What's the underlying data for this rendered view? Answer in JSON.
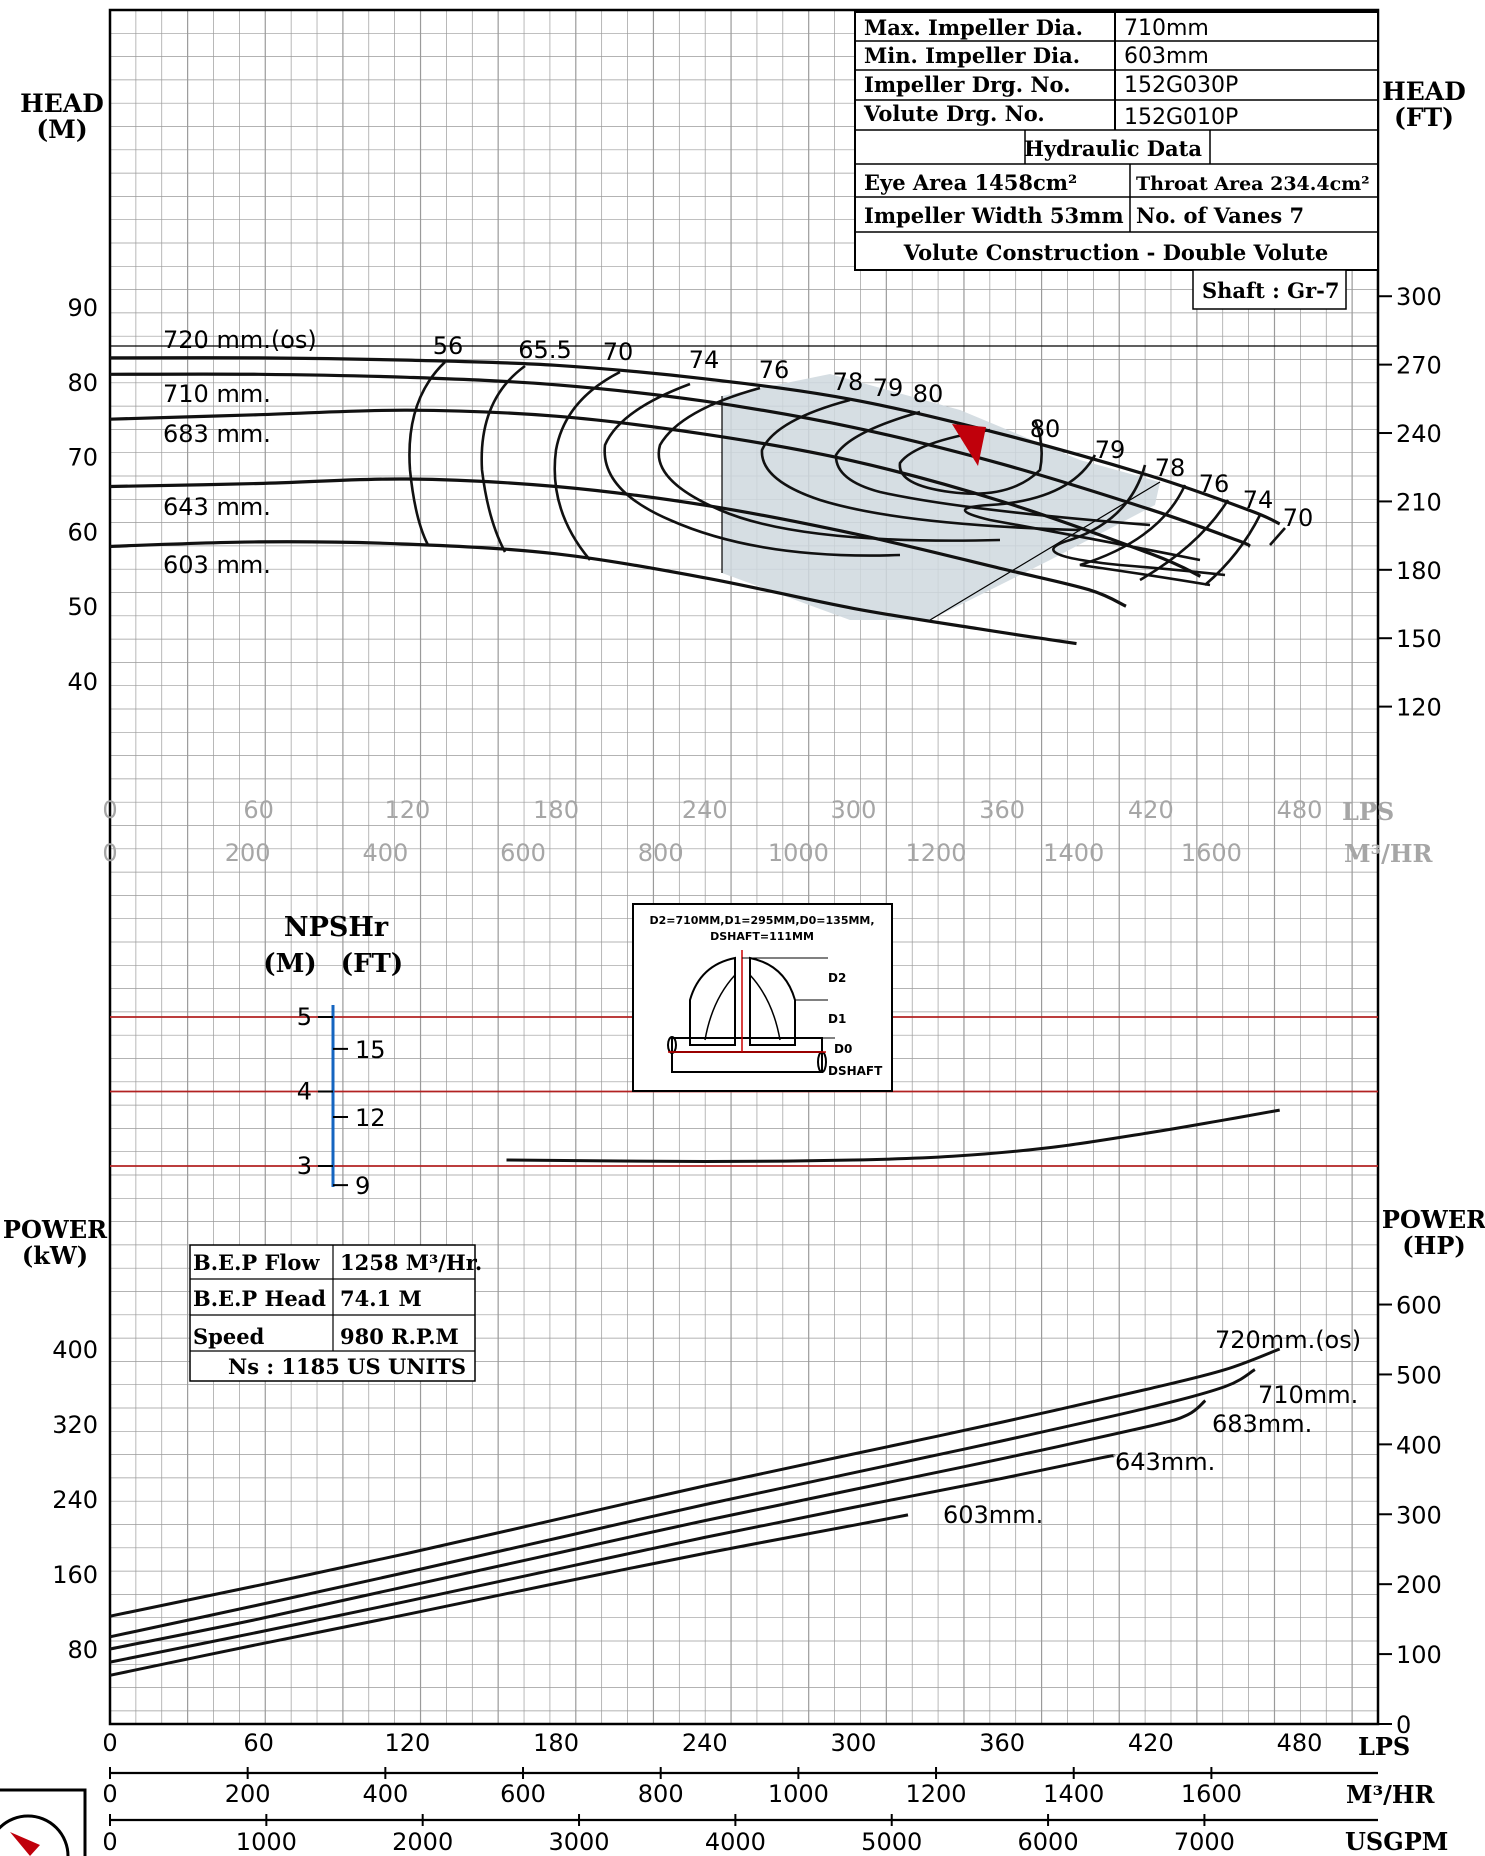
{
  "colors": {
    "grid": "#9a9a9a",
    "curve": "#111111",
    "red_line": "#b22222",
    "shade": "#cfd8de",
    "npsh_axis": "#1565c0",
    "marker": "#c0000b"
  },
  "labels": {
    "head_left": [
      "HEAD",
      "(M)"
    ],
    "head_right": [
      "HEAD",
      "(FT)"
    ],
    "power_left": [
      "POWER",
      "(kW)"
    ],
    "power_right": [
      "POWER",
      "(HP)"
    ],
    "npsh_title": "NPSHr",
    "npsh_m": "(M)",
    "npsh_ft": "(FT)"
  },
  "info_table": [
    [
      "Max. Impeller Dia.",
      "710mm"
    ],
    [
      "Min. Impeller Dia.",
      "603mm"
    ],
    [
      "Impeller Drg. No.",
      "152G030P"
    ],
    [
      "Volute Drg. No.",
      "152G010P"
    ]
  ],
  "hydraulic": {
    "title": "Hydraulic Data",
    "eye_area": "Eye Area 1458cm²",
    "throat_area": "Throat Area 234.4cm²",
    "impeller_width": "Impeller Width 53mm",
    "vanes": "No. of Vanes  7",
    "volute": "Volute Construction - Double Volute",
    "shaft": "Shaft : Gr-7"
  },
  "bep_table": [
    [
      "B.E.P Flow",
      "1258 M³/Hr."
    ],
    [
      "B.E.P Head",
      "74.1 M"
    ],
    [
      "Speed",
      "980 R.P.M"
    ]
  ],
  "ns_text": "Ns : 1185 US UNITS",
  "impeller_sketch": {
    "line1": "D2=710MM,D1=295MM,D0=135MM,",
    "line2": "DSHAFT=111MM",
    "d2": "D2",
    "d1": "D1",
    "d0": "D0",
    "dshaft": "DSHAFT"
  },
  "chart_data": {
    "type": "line",
    "axes": {
      "head_m_ticks": [
        90,
        80,
        70,
        60,
        50,
        40
      ],
      "head_ft_ticks": [
        300,
        270,
        240,
        210,
        180,
        150,
        120
      ],
      "power_kw_ticks": [
        400,
        320,
        240,
        160,
        80
      ],
      "power_hp_ticks": [
        600,
        500,
        400,
        300,
        200,
        100,
        0
      ],
      "npsh_m_ticks": [
        5,
        4,
        3
      ],
      "npsh_ft_ticks": [
        15,
        12,
        9
      ],
      "lps_ticks": [
        0,
        60,
        120,
        180,
        240,
        300,
        360,
        420,
        480
      ],
      "m3hr_ticks": [
        0,
        200,
        400,
        600,
        800,
        1000,
        1200,
        1400,
        1600
      ],
      "usgpm_ticks": [
        0,
        1000,
        2000,
        3000,
        4000,
        5000,
        6000,
        7000
      ],
      "lps_unit": "LPS",
      "m3hr_unit": "M³/HR",
      "usgpm_unit": "USGPM",
      "x_range_lps": [
        0,
        500
      ]
    },
    "head_curves": [
      {
        "name": "720 mm.(os)",
        "points": [
          [
            0,
            83.2
          ],
          [
            60,
            83.2
          ],
          [
            120,
            82.9
          ],
          [
            180,
            82.2
          ],
          [
            240,
            80.4
          ],
          [
            300,
            77.6
          ],
          [
            360,
            73.0
          ],
          [
            420,
            67.4
          ],
          [
            460,
            62.8
          ],
          [
            472,
            61.0
          ]
        ]
      },
      {
        "name": "710 mm.",
        "points": [
          [
            0,
            81.0
          ],
          [
            60,
            81.0
          ],
          [
            120,
            80.6
          ],
          [
            180,
            79.6
          ],
          [
            240,
            77.4
          ],
          [
            300,
            73.9
          ],
          [
            360,
            69.0
          ],
          [
            420,
            62.9
          ],
          [
            455,
            58.8
          ],
          [
            460,
            58.0
          ]
        ]
      },
      {
        "name": "683 mm.",
        "points": [
          [
            0,
            75.0
          ],
          [
            60,
            75.6
          ],
          [
            120,
            76.2
          ],
          [
            180,
            75.4
          ],
          [
            240,
            73.0
          ],
          [
            300,
            69.4
          ],
          [
            360,
            64.0
          ],
          [
            420,
            57.0
          ],
          [
            440,
            54.0
          ]
        ]
      },
      {
        "name": "643 mm.",
        "points": [
          [
            0,
            66.0
          ],
          [
            60,
            66.4
          ],
          [
            120,
            67.0
          ],
          [
            180,
            66.0
          ],
          [
            240,
            63.5
          ],
          [
            300,
            59.7
          ],
          [
            360,
            55.0
          ],
          [
            395,
            52.2
          ],
          [
            410,
            50.0
          ]
        ]
      },
      {
        "name": "603 mm.",
        "points": [
          [
            0,
            58.0
          ],
          [
            60,
            58.6
          ],
          [
            120,
            58.3
          ],
          [
            180,
            57.0
          ],
          [
            240,
            53.8
          ],
          [
            300,
            49.7
          ],
          [
            350,
            47.0
          ],
          [
            380,
            45.5
          ],
          [
            390,
            45.0
          ]
        ]
      }
    ],
    "efficiency_labels": [
      "56",
      "65.5",
      "70",
      "74",
      "76",
      "78",
      "79",
      "80",
      "80",
      "79",
      "78",
      "76",
      "74",
      "70"
    ],
    "npsh_curve": {
      "name": "",
      "points": [
        [
          160,
          3.08
        ],
        [
          240,
          3.06
        ],
        [
          300,
          3.08
        ],
        [
          340,
          3.13
        ],
        [
          380,
          3.25
        ],
        [
          420,
          3.45
        ],
        [
          450,
          3.62
        ],
        [
          472,
          3.75
        ]
      ]
    },
    "power_curves": [
      {
        "name": "720mm.(os)",
        "points": [
          [
            0,
            115
          ],
          [
            60,
            148
          ],
          [
            120,
            182
          ],
          [
            180,
            218
          ],
          [
            240,
            254
          ],
          [
            300,
            288
          ],
          [
            360,
            322
          ],
          [
            420,
            358
          ],
          [
            450,
            378
          ],
          [
            472,
            400
          ]
        ]
      },
      {
        "name": "710mm.",
        "points": [
          [
            0,
            93
          ],
          [
            60,
            127
          ],
          [
            120,
            162
          ],
          [
            180,
            198
          ],
          [
            240,
            234
          ],
          [
            300,
            268
          ],
          [
            360,
            302
          ],
          [
            420,
            338
          ],
          [
            450,
            360
          ],
          [
            462,
            378
          ]
        ]
      },
      {
        "name": "683mm.",
        "points": [
          [
            0,
            80
          ],
          [
            60,
            112
          ],
          [
            120,
            147
          ],
          [
            180,
            182
          ],
          [
            240,
            217
          ],
          [
            300,
            250
          ],
          [
            360,
            283
          ],
          [
            420,
            318
          ],
          [
            435,
            330
          ],
          [
            442,
            345
          ]
        ]
      },
      {
        "name": "643mm.",
        "points": [
          [
            0,
            66
          ],
          [
            60,
            98
          ],
          [
            120,
            131
          ],
          [
            180,
            165
          ],
          [
            240,
            199
          ],
          [
            300,
            231
          ],
          [
            360,
            262
          ],
          [
            400,
            284
          ],
          [
            405,
            286
          ]
        ]
      },
      {
        "name": "603mm.",
        "points": [
          [
            0,
            52
          ],
          [
            60,
            85
          ],
          [
            120,
            117
          ],
          [
            180,
            150
          ],
          [
            240,
            182
          ],
          [
            300,
            212
          ],
          [
            322,
            223
          ]
        ]
      }
    ]
  }
}
